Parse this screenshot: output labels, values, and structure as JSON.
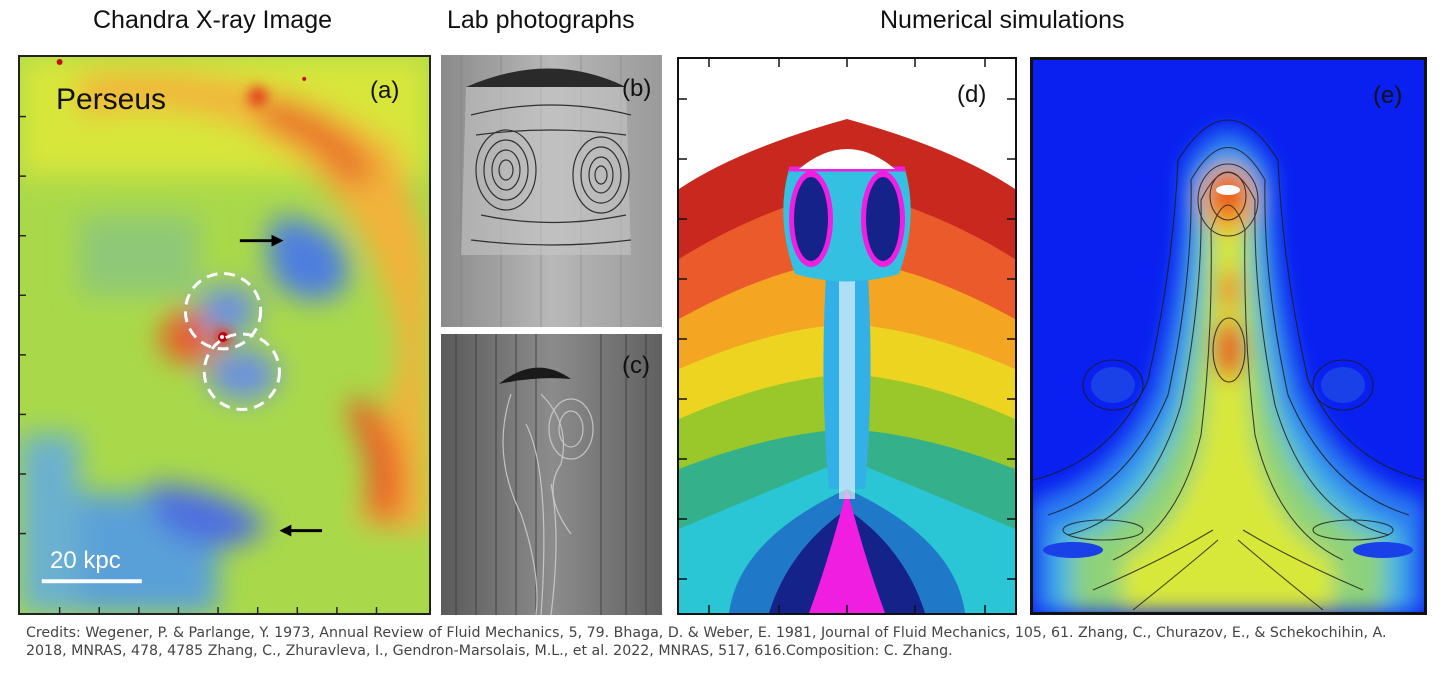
{
  "headings": {
    "chandra": "Chandra X-ray Image",
    "lab": "Lab photographs",
    "numerical": "Numerical simulations"
  },
  "panels": {
    "a": {
      "label": "(a)",
      "object_name": "Perseus",
      "scale_bar": "20 kpc"
    },
    "b": {
      "label": "(b)"
    },
    "c": {
      "label": "(c)"
    },
    "d": {
      "label": "(d)"
    },
    "e": {
      "label": "(e)"
    }
  },
  "credits": "Credits: Wegener, P. & Parlange, Y. 1973, Annual Review of Fluid Mechanics, 5, 79. Bhaga, D. & Weber, E. 1981, Journal of Fluid Mechanics, 105, 61. Zhang, C., Churazov, E., & Schekochihin, A. 2018, MNRAS, 478, 4785 Zhang, C., Zhuravleva, I., Gendron-Marsolais, M.L., et al. 2022, MNRAS, 517, 616.Composition: C. Zhang."
}
